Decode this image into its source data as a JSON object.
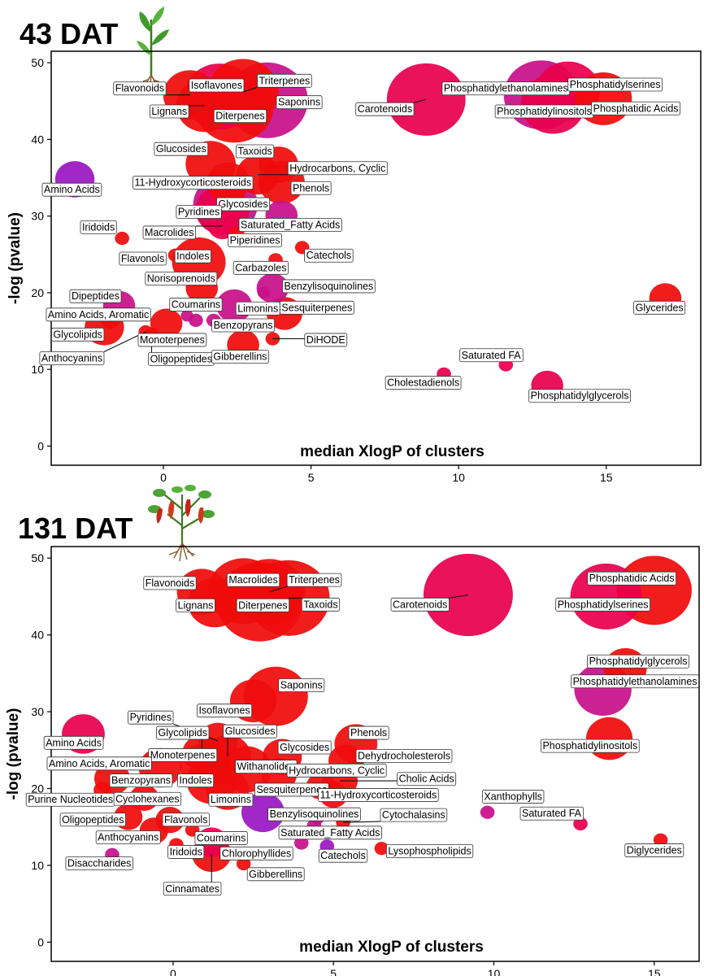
{
  "colors": {
    "red": "#f00c0c",
    "crimson": "#e8004e",
    "magenta": "#c8108a",
    "purple": "#9a18c2"
  },
  "icons": [
    "seedling-icon",
    "fruiting-pepper-plant-icon"
  ],
  "chart_data": [
    {
      "type": "scatter",
      "title": "43 DAT",
      "xlabel": "median XlogP of clusters",
      "ylabel": "-log (pvalue)",
      "xlim": [
        -3.8,
        18.2
      ],
      "ylim": [
        -2.5,
        51.5
      ],
      "xticks": [
        0,
        5,
        10,
        15
      ],
      "yticks": [
        0,
        10,
        20,
        30,
        40,
        50
      ],
      "grid": false,
      "points": [
        {
          "name": "Flavonoids",
          "x": 0.9,
          "y": 45.8,
          "size": 1.5,
          "color": "red",
          "lx": -0.8,
          "ly": 46.7
        },
        {
          "name": "Lignans",
          "x": 1.4,
          "y": 44.4,
          "size": 1.6,
          "color": "red",
          "lx": 0.2,
          "ly": 43.7
        },
        {
          "name": "Isoflavones",
          "x": 1.9,
          "y": 45.6,
          "size": 2.0,
          "color": "crimson",
          "lx": 1.8,
          "ly": 47.1
        },
        {
          "name": "Triterpenes",
          "x": 2.7,
          "y": 46.2,
          "size": 2.0,
          "color": "red",
          "lx": 4.1,
          "ly": 47.7
        },
        {
          "name": "Diterpenes",
          "x": 2.4,
          "y": 44.3,
          "size": 2.2,
          "color": "red",
          "lx": 2.6,
          "ly": 43.1
        },
        {
          "name": "Saponins",
          "x": 3.5,
          "y": 45.1,
          "size": 2.3,
          "color": "magenta",
          "lx": 4.6,
          "ly": 44.9
        },
        {
          "name": "Carotenoids",
          "x": 8.9,
          "y": 45.2,
          "size": 2.2,
          "color": "crimson",
          "lx": 7.5,
          "ly": 44.0
        },
        {
          "name": "Phosphatidylethanolamines",
          "x": 12.8,
          "y": 45.8,
          "size": 2.1,
          "color": "magenta",
          "lx": 11.6,
          "ly": 46.7
        },
        {
          "name": "Phosphatidylserines",
          "x": 13.7,
          "y": 46.3,
          "size": 1.8,
          "color": "crimson",
          "lx": 15.3,
          "ly": 47.2
        },
        {
          "name": "Phosphatidylinositols",
          "x": 13.2,
          "y": 44.6,
          "size": 1.8,
          "color": "crimson",
          "lx": 12.9,
          "ly": 43.7
        },
        {
          "name": "Phosphatidic Acids",
          "x": 14.9,
          "y": 45.3,
          "size": 1.6,
          "color": "red",
          "lx": 16.0,
          "ly": 44.1
        },
        {
          "name": "Glucosides",
          "x": 1.6,
          "y": 36.8,
          "size": 1.4,
          "color": "red",
          "lx": 0.6,
          "ly": 38.8
        },
        {
          "name": "Taxoids",
          "x": 3.9,
          "y": 36.7,
          "size": 1.1,
          "color": "red",
          "lx": 3.1,
          "ly": 38.5
        },
        {
          "name": "Hydrocarbons, Cyclic",
          "x": 3.2,
          "y": 35.4,
          "size": 1.2,
          "color": "red",
          "lx": 5.9,
          "ly": 36.3
        },
        {
          "name": "11-Hydroxycorticosteroids",
          "x": 2.2,
          "y": 34.4,
          "size": 1.2,
          "color": "red",
          "lx": 1.0,
          "ly": 34.4
        },
        {
          "name": "Phenols",
          "x": 4.0,
          "y": 34.4,
          "size": 1.3,
          "color": "red",
          "lx": 5.0,
          "ly": 33.7
        },
        {
          "name": "Amino Acids",
          "x": -3.0,
          "y": 34.8,
          "size": 1.1,
          "color": "purple",
          "lx": -3.1,
          "ly": 33.5
        },
        {
          "name": "Glycosides",
          "x": 2.1,
          "y": 31.5,
          "size": 1.8,
          "color": "magenta",
          "lx": 2.7,
          "ly": 31.6
        },
        {
          "name": "Pyridines",
          "x": 2.0,
          "y": 30.8,
          "size": 1.5,
          "color": "crimson",
          "lx": 1.2,
          "ly": 30.6
        },
        {
          "name": "Saturated_Fatty Acids",
          "x": 4.0,
          "y": 30.1,
          "size": 0.9,
          "color": "magenta",
          "lx": 4.3,
          "ly": 28.9
        },
        {
          "name": "Macrolides",
          "x": 2.0,
          "y": 28.7,
          "size": 0.8,
          "color": "crimson",
          "lx": 0.2,
          "ly": 27.9
        },
        {
          "name": "Iridoids",
          "x": -1.4,
          "y": 27.1,
          "size": 0.4,
          "color": "red",
          "lx": -2.2,
          "ly": 28.6
        },
        {
          "name": "Piperidines",
          "x": 2.5,
          "y": 27.8,
          "size": 0.4,
          "color": "red",
          "lx": 3.1,
          "ly": 26.9
        },
        {
          "name": "Catechols",
          "x": 4.7,
          "y": 25.9,
          "size": 0.4,
          "color": "red",
          "lx": 5.6,
          "ly": 24.9
        },
        {
          "name": "Flavonols",
          "x": 0.4,
          "y": 24.9,
          "size": 0.4,
          "color": "red",
          "lx": -0.7,
          "ly": 24.5
        },
        {
          "name": "Indoles",
          "x": 1.2,
          "y": 24.0,
          "size": 1.5,
          "color": "red",
          "lx": 1.0,
          "ly": 24.8
        },
        {
          "name": "Carbazoles",
          "x": 3.8,
          "y": 24.3,
          "size": 0.4,
          "color": "red",
          "lx": 3.3,
          "ly": 23.3
        },
        {
          "name": "Norisoprenoids",
          "x": 1.3,
          "y": 20.6,
          "size": 0.9,
          "color": "red",
          "lx": 0.6,
          "ly": 21.9
        },
        {
          "name": "Benzylisoquinolines",
          "x": 3.7,
          "y": 20.6,
          "size": 0.9,
          "color": "magenta",
          "lx": 5.6,
          "ly": 20.9
        },
        {
          "name": "Dipeptides",
          "x": -1.5,
          "y": 18.3,
          "size": 0.9,
          "color": "magenta",
          "lx": -2.3,
          "ly": 19.6
        },
        {
          "name": "Coumarins",
          "x": 1.1,
          "y": 16.4,
          "size": 0.4,
          "color": "magenta",
          "lx": 1.1,
          "ly": 18.5
        },
        {
          "name": "Limonins",
          "x": 2.4,
          "y": 18.3,
          "size": 1.0,
          "color": "magenta",
          "lx": 3.2,
          "ly": 18.0
        },
        {
          "name": "Sesquiterpenes",
          "x": 4.1,
          "y": 17.3,
          "size": 1.0,
          "color": "red",
          "lx": 5.2,
          "ly": 18.1
        },
        {
          "name": "Amino Acids, Aromatic",
          "x": -1.8,
          "y": 16.6,
          "size": 0.6,
          "color": "red",
          "lx": -2.2,
          "ly": 17.2
        },
        {
          "name": "Benzopyrans",
          "x": 1.7,
          "y": 16.4,
          "size": 0.4,
          "color": "magenta",
          "lx": 2.7,
          "ly": 15.8
        },
        {
          "name": "Glycolipids",
          "x": -2.0,
          "y": 15.5,
          "size": 1.1,
          "color": "red",
          "lx": -2.9,
          "ly": 14.6
        },
        {
          "name": "Monoterpenes",
          "x": 0.1,
          "y": 16.0,
          "size": 0.9,
          "color": "red",
          "lx": 0.3,
          "ly": 13.9
        },
        {
          "name": "DiHODE",
          "x": 3.7,
          "y": 14.0,
          "size": 0.4,
          "color": "red",
          "lx": 5.5,
          "ly": 13.9
        },
        {
          "name": "Anthocyanins",
          "x": -0.6,
          "y": 14.9,
          "size": 0.4,
          "color": "red",
          "lx": -3.1,
          "ly": 11.5
        },
        {
          "name": "Oligopeptides",
          "x": -0.4,
          "y": 14.6,
          "size": 0.4,
          "color": "red",
          "lx": 0.6,
          "ly": 11.4
        },
        {
          "name": "Gibberellins",
          "x": 2.7,
          "y": 13.2,
          "size": 0.9,
          "color": "red",
          "lx": 2.6,
          "ly": 11.7
        },
        {
          "name": "Saturated FA",
          "x": 11.6,
          "y": 10.6,
          "size": 0.4,
          "color": "crimson",
          "lx": 11.1,
          "ly": 11.9
        },
        {
          "name": "Cholestadienols",
          "x": 9.5,
          "y": 9.4,
          "size": 0.4,
          "color": "crimson",
          "lx": 8.8,
          "ly": 8.3
        },
        {
          "name": "Phosphatidylglycerols",
          "x": 13.0,
          "y": 7.9,
          "size": 0.9,
          "color": "crimson",
          "lx": 14.1,
          "ly": 6.6
        },
        {
          "name": "Glycerides",
          "x": 17.0,
          "y": 19.3,
          "size": 0.9,
          "color": "red",
          "lx": 16.8,
          "ly": 18.1
        },
        {
          "name": "",
          "x": 0.8,
          "y": 17.0,
          "size": 0.35,
          "color": "magenta"
        },
        {
          "name": "",
          "x": 3.4,
          "y": 20.0,
          "size": 0.35,
          "color": "magenta"
        }
      ]
    },
    {
      "type": "scatter",
      "title": "131 DAT",
      "xlabel": "median XlogP of clusters",
      "ylabel": "-log (pvalue)",
      "xlim": [
        -3.8,
        16.4
      ],
      "ylim": [
        -2.5,
        51.5
      ],
      "xticks": [
        0,
        5,
        10,
        15
      ],
      "yticks": [
        0,
        10,
        20,
        30,
        40,
        50
      ],
      "grid": false,
      "points": [
        {
          "name": "Flavonoids",
          "x": 0.9,
          "y": 45.6,
          "size": 1.4,
          "color": "red",
          "lx": -0.1,
          "ly": 46.8
        },
        {
          "name": "Lignans",
          "x": 1.3,
          "y": 44.2,
          "size": 1.5,
          "color": "red",
          "lx": 0.7,
          "ly": 43.9
        },
        {
          "name": "Macrolides",
          "x": 2.2,
          "y": 45.7,
          "size": 2.0,
          "color": "red",
          "lx": 2.5,
          "ly": 47.2
        },
        {
          "name": "Triterpenes",
          "x": 3.0,
          "y": 45.6,
          "size": 2.0,
          "color": "red",
          "lx": 4.4,
          "ly": 47.2
        },
        {
          "name": "Diterpenes",
          "x": 2.7,
          "y": 44.3,
          "size": 2.4,
          "color": "red",
          "lx": 2.8,
          "ly": 43.9
        },
        {
          "name": "Taxoids",
          "x": 3.6,
          "y": 44.8,
          "size": 2.3,
          "color": "red",
          "lx": 4.6,
          "ly": 44.0
        },
        {
          "name": "Carotenoids",
          "x": 9.2,
          "y": 45.2,
          "size": 2.5,
          "color": "crimson",
          "lx": 7.7,
          "ly": 44.0
        },
        {
          "name": "Phosphatidic Acids",
          "x": 15.0,
          "y": 45.8,
          "size": 2.1,
          "color": "red",
          "lx": 14.3,
          "ly": 47.4
        },
        {
          "name": "Phosphatidylserines",
          "x": 13.5,
          "y": 45.0,
          "size": 2.0,
          "color": "crimson",
          "lx": 13.4,
          "ly": 44.0
        },
        {
          "name": "Phosphatidylglycerols",
          "x": 14.1,
          "y": 35.7,
          "size": 1.2,
          "color": "red",
          "lx": 14.5,
          "ly": 36.6
        },
        {
          "name": "Phosphatidylethanolamines",
          "x": 13.4,
          "y": 32.9,
          "size": 1.6,
          "color": "magenta",
          "lx": 14.4,
          "ly": 34.0
        },
        {
          "name": "Phosphatidylinositols",
          "x": 13.6,
          "y": 26.5,
          "size": 1.3,
          "color": "red",
          "lx": 13.0,
          "ly": 25.6
        },
        {
          "name": "Saponins",
          "x": 3.2,
          "y": 32.0,
          "size": 1.8,
          "color": "red",
          "lx": 4.0,
          "ly": 33.5
        },
        {
          "name": "Isoflavones",
          "x": 2.5,
          "y": 31.4,
          "size": 1.3,
          "color": "red",
          "lx": 1.6,
          "ly": 30.2
        },
        {
          "name": "Amino Acids",
          "x": -2.8,
          "y": 27.1,
          "size": 1.2,
          "color": "crimson",
          "lx": -3.1,
          "ly": 26.0
        },
        {
          "name": "Pyridines",
          "x": 1.4,
          "y": 26.2,
          "size": 1.1,
          "color": "red",
          "lx": -0.7,
          "ly": 29.3
        },
        {
          "name": "Glucosides",
          "x": 1.7,
          "y": 24.2,
          "size": 1.3,
          "color": "red",
          "lx": 2.4,
          "ly": 27.5
        },
        {
          "name": "Glycolipids",
          "x": 0.9,
          "y": 24.6,
          "size": 1.1,
          "color": "red",
          "lx": 0.3,
          "ly": 27.3
        },
        {
          "name": "Phenols",
          "x": 5.7,
          "y": 25.8,
          "size": 1.2,
          "color": "red",
          "lx": 6.1,
          "ly": 27.3
        },
        {
          "name": "Glycosides",
          "x": 3.4,
          "y": 24.1,
          "size": 1.1,
          "color": "red",
          "lx": 4.1,
          "ly": 25.4
        },
        {
          "name": "Monoterpenes",
          "x": 1.0,
          "y": 22.9,
          "size": 1.4,
          "color": "red",
          "lx": 0.3,
          "ly": 24.4
        },
        {
          "name": "Dehydrocholesterols",
          "x": 5.4,
          "y": 23.6,
          "size": 1.0,
          "color": "red",
          "lx": 7.2,
          "ly": 24.3
        },
        {
          "name": "Amino Acids, Aromatic",
          "x": -0.4,
          "y": 22.7,
          "size": 1.2,
          "color": "red",
          "lx": -2.3,
          "ly": 23.3
        },
        {
          "name": "Withanolides",
          "x": 2.3,
          "y": 22.5,
          "size": 1.4,
          "color": "red",
          "lx": 2.9,
          "ly": 22.9
        },
        {
          "name": "Hydrocarbons, Cyclic",
          "x": 3.3,
          "y": 21.8,
          "size": 1.0,
          "color": "red",
          "lx": 5.1,
          "ly": 22.4
        },
        {
          "name": "Benzopyrans",
          "x": -1.9,
          "y": 21.3,
          "size": 1.0,
          "color": "red",
          "lx": -1.0,
          "ly": 21.1
        },
        {
          "name": "Indoles",
          "x": 1.2,
          "y": 21.0,
          "size": 1.4,
          "color": "red",
          "lx": 0.7,
          "ly": 21.1
        },
        {
          "name": "Cholic Acids",
          "x": 5.2,
          "y": 21.0,
          "size": 1.0,
          "color": "red",
          "lx": 7.9,
          "ly": 21.3
        },
        {
          "name": "Sesquiterpenes",
          "x": 4.6,
          "y": 20.3,
          "size": 0.8,
          "color": "red",
          "lx": 3.7,
          "ly": 19.9
        },
        {
          "name": "Limonins",
          "x": 1.7,
          "y": 19.8,
          "size": 1.2,
          "color": "red",
          "lx": 1.8,
          "ly": 18.6
        },
        {
          "name": "11-Hydroxycorticosteroids",
          "x": 5.0,
          "y": 19.2,
          "size": 0.8,
          "color": "red",
          "lx": 6.4,
          "ly": 19.2
        },
        {
          "name": "Xanthophylls",
          "x": 9.8,
          "y": 16.9,
          "size": 0.4,
          "color": "magenta",
          "lx": 10.6,
          "ly": 19.0
        },
        {
          "name": "Purine Nucleotides",
          "x": -2.2,
          "y": 19.8,
          "size": 0.5,
          "color": "red",
          "lx": -3.2,
          "ly": 18.6
        },
        {
          "name": "Cyclohexanes",
          "x": -0.9,
          "y": 18.8,
          "size": 0.8,
          "color": "red",
          "lx": -0.8,
          "ly": 18.7
        },
        {
          "name": "Benzylisoquinolines",
          "x": 2.8,
          "y": 16.9,
          "size": 1.2,
          "color": "purple",
          "lx": 4.4,
          "ly": 16.7
        },
        {
          "name": "Cytochalasins",
          "x": 5.3,
          "y": 15.6,
          "size": 0.4,
          "color": "red",
          "lx": 7.5,
          "ly": 16.6
        },
        {
          "name": "Saturated FA",
          "x": 12.7,
          "y": 15.4,
          "size": 0.4,
          "color": "crimson",
          "lx": 11.8,
          "ly": 16.8
        },
        {
          "name": "Oligopeptides",
          "x": -1.4,
          "y": 16.3,
          "size": 0.8,
          "color": "red",
          "lx": -2.5,
          "ly": 16.0
        },
        {
          "name": "Flavonols",
          "x": -0.1,
          "y": 15.9,
          "size": 0.8,
          "color": "red",
          "lx": 0.4,
          "ly": 16.0
        },
        {
          "name": "Saturated_Fatty Acids",
          "x": 4.4,
          "y": 15.2,
          "size": 0.4,
          "color": "magenta",
          "lx": 4.9,
          "ly": 14.3
        },
        {
          "name": "Anthocyanins",
          "x": -0.6,
          "y": 14.5,
          "size": 0.8,
          "color": "red",
          "lx": -1.4,
          "ly": 13.7
        },
        {
          "name": "Coumarins",
          "x": 1.2,
          "y": 13.0,
          "size": 0.9,
          "color": "crimson",
          "lx": 1.5,
          "ly": 13.6
        },
        {
          "name": "Iridoids",
          "x": 0.1,
          "y": 12.7,
          "size": 0.4,
          "color": "red",
          "lx": 0.4,
          "ly": 11.8
        },
        {
          "name": "Chlorophyllides",
          "x": 4.0,
          "y": 12.9,
          "size": 0.4,
          "color": "magenta",
          "lx": 2.6,
          "ly": 11.6
        },
        {
          "name": "Catechols",
          "x": 4.8,
          "y": 12.5,
          "size": 0.4,
          "color": "purple",
          "lx": 5.3,
          "ly": 11.3
        },
        {
          "name": "Lysophospholipids",
          "x": 6.5,
          "y": 12.2,
          "size": 0.4,
          "color": "red",
          "lx": 8.0,
          "ly": 11.9
        },
        {
          "name": "Disaccharides",
          "x": -1.9,
          "y": 11.4,
          "size": 0.4,
          "color": "magenta",
          "lx": -2.3,
          "ly": 10.3
        },
        {
          "name": "Diglycerides",
          "x": 15.2,
          "y": 13.3,
          "size": 0.4,
          "color": "red",
          "lx": 15.0,
          "ly": 12.0
        },
        {
          "name": "Cinnamates",
          "x": 1.2,
          "y": 11.5,
          "size": 1.1,
          "color": "red",
          "lx": 0.6,
          "ly": 7.0
        },
        {
          "name": "Gibberellins",
          "x": 2.2,
          "y": 10.2,
          "size": 0.4,
          "color": "red",
          "lx": 3.2,
          "ly": 8.9
        },
        {
          "name": "",
          "x": 4.5,
          "y": 16.2,
          "size": 0.4,
          "color": "magenta"
        },
        {
          "name": "",
          "x": 0.6,
          "y": 14.6,
          "size": 0.4,
          "color": "red"
        }
      ]
    }
  ]
}
